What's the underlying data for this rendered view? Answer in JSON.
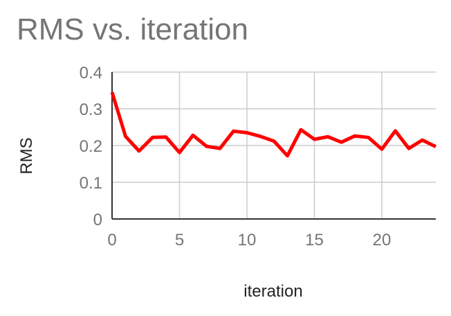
{
  "chart_data": {
    "type": "line",
    "title": "RMS vs. iteration",
    "xlabel": "iteration",
    "ylabel": "RMS",
    "xlim": [
      0,
      24
    ],
    "ylim": [
      0,
      0.4
    ],
    "x_ticks": [
      0,
      5,
      10,
      15,
      20
    ],
    "y_ticks": [
      "0",
      "0.1",
      "0.2",
      "0.3",
      "0.4"
    ],
    "grid": true,
    "legend": "none",
    "series": [
      {
        "color": "#ff0000",
        "x": [
          0,
          1,
          2,
          3,
          4,
          5,
          6,
          7,
          8,
          9,
          10,
          11,
          12,
          13,
          14,
          15,
          16,
          17,
          18,
          19,
          20,
          21,
          22,
          23,
          24
        ],
        "y": [
          0.345,
          0.225,
          0.185,
          0.222,
          0.223,
          0.181,
          0.228,
          0.198,
          0.192,
          0.239,
          0.235,
          0.225,
          0.212,
          0.172,
          0.243,
          0.217,
          0.224,
          0.209,
          0.226,
          0.222,
          0.19,
          0.24,
          0.192,
          0.215,
          0.197
        ]
      }
    ]
  }
}
